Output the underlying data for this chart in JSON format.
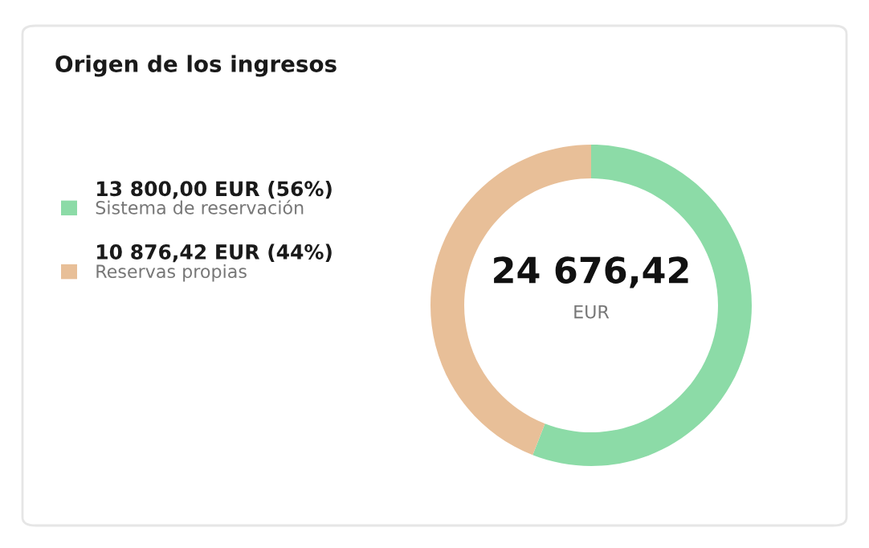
{
  "chart_data": {
    "type": "donut",
    "title": "Origen de los ingresos",
    "categories": [
      "Sistema de reservación",
      "Reservas propias"
    ],
    "values": [
      13800.0,
      10876.42
    ],
    "value_labels": [
      "13 800,00 EUR (56%)",
      "10 876,42 EUR (44%)"
    ],
    "colors": [
      "#8cdba7",
      "#e8bf98"
    ],
    "annotations": [
      "24 676,42",
      "EUR"
    ],
    "legend": "left"
  }
}
